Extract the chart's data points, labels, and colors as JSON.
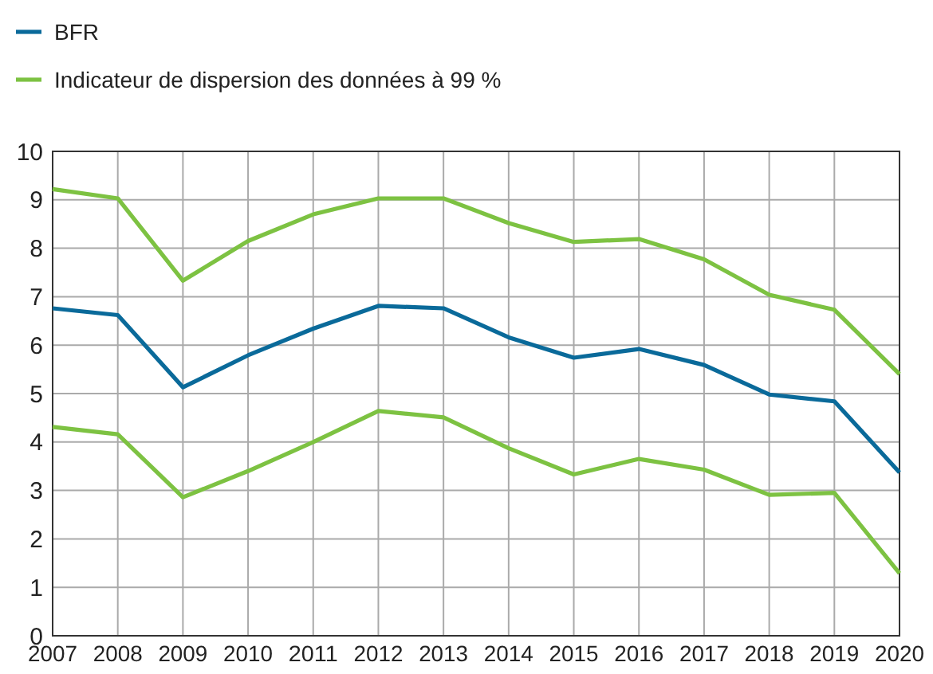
{
  "chart_data": {
    "type": "line",
    "x": [
      2007,
      2008,
      2009,
      2010,
      2011,
      2012,
      2013,
      2014,
      2015,
      2016,
      2017,
      2018,
      2019,
      2020
    ],
    "series": [
      {
        "name": "BFR",
        "color": "#0a6a9a",
        "values": [
          6.76,
          6.62,
          5.13,
          5.79,
          6.34,
          6.81,
          6.76,
          6.16,
          5.74,
          5.92,
          5.59,
          4.98,
          4.84,
          3.37
        ]
      },
      {
        "name": "Indicateur de dispersion des données à 99 %",
        "color": "#7dc242",
        "values": [
          9.22,
          9.03,
          7.33,
          8.15,
          8.7,
          9.03,
          9.03,
          8.52,
          8.13,
          8.19,
          7.77,
          7.04,
          6.73,
          5.4
        ]
      },
      {
        "color": "#7dc242",
        "values": [
          4.31,
          4.16,
          2.86,
          3.4,
          4.0,
          4.64,
          4.51,
          3.87,
          3.33,
          3.65,
          3.43,
          2.91,
          2.95,
          1.29
        ]
      }
    ],
    "xlim": [
      2007,
      2020
    ],
    "xticks": [
      2007,
      2008,
      2009,
      2010,
      2011,
      2012,
      2013,
      2014,
      2015,
      2016,
      2017,
      2018,
      2019,
      2020
    ],
    "ylim": [
      0,
      10
    ],
    "yticks": [
      0,
      1,
      2,
      3,
      4,
      5,
      6,
      7,
      8,
      9,
      10
    ],
    "grid": true,
    "legend": "top left",
    "marker": "none",
    "line_style": "solid"
  }
}
